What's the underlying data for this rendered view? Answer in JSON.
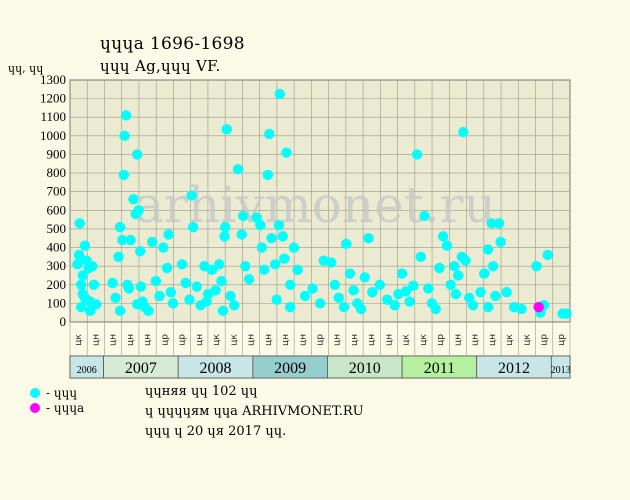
{
  "header": {
    "title_line1": "ɥɥɥa 1696-1698",
    "title_line2": "ɥɥɥ Ag,ɥɥɥ VF.",
    "y_unit": "ɥɥ, ɥɥ"
  },
  "legend": [
    {
      "label": "- ɥɥɥ",
      "color": "#00ffff"
    },
    {
      "label": "- ɥɥɥa",
      "color": "#ff00ff"
    }
  ],
  "notes": [
    "ɥɥняя ɥɥ 102 ɥɥ",
    "ɥ ɥɥɥɥям ɥɥa ARHIVMONET.RU",
    "ɥɥɥ ɥ 20 ɥя 2017 ɥɥ."
  ],
  "watermark": "arhivmonet.ru",
  "colors": {
    "background": "#fafae6",
    "plot_bg": "#ebebd2",
    "grid": "#9a9a8a",
    "series_main": "#00ffff",
    "series_highlight": "#ff00ff",
    "watermark": "#c8c8c8"
  },
  "chart_data": {
    "type": "scatter",
    "ylim": [
      0,
      1300
    ],
    "yticks": [
      0,
      100,
      200,
      300,
      400,
      500,
      600,
      700,
      800,
      900,
      1000,
      1100,
      1200,
      1300
    ],
    "xlim": [
      2006.55,
      2013.25
    ],
    "grid": true,
    "month_labels": [
      "цк",
      "цн",
      "цн",
      "цн",
      "цн",
      "цр",
      "цр",
      "цн",
      "цк",
      "цк",
      "цн",
      "цн",
      "цн",
      "цн",
      "цр",
      "цн",
      "цн",
      "цн",
      "цн",
      "цк",
      "цк",
      "цр",
      "цн",
      "цн",
      "цн",
      "цк",
      "цк",
      "цр",
      "цр"
    ],
    "years": [
      {
        "label": "2006",
        "from": 2006.55,
        "to": 2007.0,
        "color": "#c8e6e6",
        "small": true
      },
      {
        "label": "2007",
        "from": 2007.0,
        "to": 2008.0,
        "color": "#d6ead6",
        "small": false
      },
      {
        "label": "2008",
        "from": 2008.0,
        "to": 2009.0,
        "color": "#c8e6e6",
        "small": false
      },
      {
        "label": "2009",
        "from": 2009.0,
        "to": 2010.0,
        "color": "#96cdcd",
        "small": false
      },
      {
        "label": "2010",
        "from": 2010.0,
        "to": 2011.0,
        "color": "#c8e6c8",
        "small": false
      },
      {
        "label": "2011",
        "from": 2011.0,
        "to": 2012.0,
        "color": "#b4f0a0",
        "small": false
      },
      {
        "label": "2012",
        "from": 2012.0,
        "to": 2013.0,
        "color": "#c8e6e6",
        "small": false
      },
      {
        "label": "2013",
        "from": 2013.0,
        "to": 2013.25,
        "color": "#c8e6e6",
        "small": true
      }
    ],
    "series": [
      {
        "name": "ɥɥɥ",
        "color": "#00ffff",
        "points": [
          [
            2006.65,
            310
          ],
          [
            2006.67,
            360
          ],
          [
            2006.68,
            530
          ],
          [
            2006.7,
            200
          ],
          [
            2006.72,
            250
          ],
          [
            2006.72,
            150
          ],
          [
            2006.75,
            410
          ],
          [
            2006.77,
            330
          ],
          [
            2006.8,
            290
          ],
          [
            2006.82,
            60
          ],
          [
            2006.82,
            110
          ],
          [
            2006.85,
            300
          ],
          [
            2006.87,
            200
          ],
          [
            2006.9,
            95
          ],
          [
            2006.7,
            80
          ],
          [
            2006.75,
            130
          ],
          [
            2007.12,
            210
          ],
          [
            2007.16,
            130
          ],
          [
            2007.2,
            350
          ],
          [
            2007.22,
            510
          ],
          [
            2007.25,
            440
          ],
          [
            2007.27,
            790
          ],
          [
            2007.28,
            1000
          ],
          [
            2007.3,
            1110
          ],
          [
            2007.32,
            200
          ],
          [
            2007.34,
            180
          ],
          [
            2007.36,
            440
          ],
          [
            2007.4,
            660
          ],
          [
            2007.43,
            580
          ],
          [
            2007.45,
            900
          ],
          [
            2007.47,
            600
          ],
          [
            2007.49,
            380
          ],
          [
            2007.5,
            190
          ],
          [
            2007.52,
            110
          ],
          [
            2007.55,
            80
          ],
          [
            2007.6,
            60
          ],
          [
            2007.65,
            430
          ],
          [
            2007.7,
            220
          ],
          [
            2007.75,
            140
          ],
          [
            2007.8,
            400
          ],
          [
            2007.85,
            290
          ],
          [
            2007.87,
            470
          ],
          [
            2007.9,
            160
          ],
          [
            2007.93,
            100
          ],
          [
            2007.22,
            60
          ],
          [
            2007.45,
            95
          ],
          [
            2008.05,
            310
          ],
          [
            2008.1,
            210
          ],
          [
            2008.15,
            120
          ],
          [
            2008.18,
            680
          ],
          [
            2008.2,
            510
          ],
          [
            2008.25,
            190
          ],
          [
            2008.3,
            90
          ],
          [
            2008.35,
            300
          ],
          [
            2008.4,
            150
          ],
          [
            2008.45,
            280
          ],
          [
            2008.5,
            170
          ],
          [
            2008.55,
            310
          ],
          [
            2008.58,
            220
          ],
          [
            2008.62,
            460
          ],
          [
            2008.63,
            510
          ],
          [
            2008.65,
            1035
          ],
          [
            2008.7,
            140
          ],
          [
            2008.75,
            90
          ],
          [
            2008.8,
            820
          ],
          [
            2008.85,
            470
          ],
          [
            2008.87,
            570
          ],
          [
            2008.9,
            300
          ],
          [
            2008.95,
            230
          ],
          [
            2008.38,
            110
          ],
          [
            2008.6,
            60
          ],
          [
            2009.05,
            560
          ],
          [
            2009.1,
            520
          ],
          [
            2009.12,
            400
          ],
          [
            2009.15,
            280
          ],
          [
            2009.2,
            790
          ],
          [
            2009.22,
            1010
          ],
          [
            2009.25,
            450
          ],
          [
            2009.3,
            310
          ],
          [
            2009.35,
            520
          ],
          [
            2009.36,
            1225
          ],
          [
            2009.4,
            460
          ],
          [
            2009.42,
            340
          ],
          [
            2009.45,
            910
          ],
          [
            2009.5,
            200
          ],
          [
            2009.55,
            400
          ],
          [
            2009.6,
            280
          ],
          [
            2009.7,
            140
          ],
          [
            2009.8,
            180
          ],
          [
            2009.9,
            100
          ],
          [
            2009.95,
            330
          ],
          [
            2009.32,
            120
          ],
          [
            2009.5,
            80
          ],
          [
            2010.05,
            320
          ],
          [
            2010.1,
            200
          ],
          [
            2010.15,
            130
          ],
          [
            2010.25,
            420
          ],
          [
            2010.3,
            260
          ],
          [
            2010.35,
            170
          ],
          [
            2010.4,
            100
          ],
          [
            2010.5,
            240
          ],
          [
            2010.55,
            450
          ],
          [
            2010.6,
            160
          ],
          [
            2010.7,
            200
          ],
          [
            2010.8,
            120
          ],
          [
            2010.9,
            90
          ],
          [
            2010.95,
            150
          ],
          [
            2010.22,
            80
          ],
          [
            2010.45,
            70
          ],
          [
            2011.0,
            260
          ],
          [
            2011.05,
            165
          ],
          [
            2011.1,
            110
          ],
          [
            2011.15,
            195
          ],
          [
            2011.2,
            900
          ],
          [
            2011.25,
            350
          ],
          [
            2011.3,
            570
          ],
          [
            2011.35,
            180
          ],
          [
            2011.4,
            100
          ],
          [
            2011.5,
            290
          ],
          [
            2011.55,
            460
          ],
          [
            2011.6,
            410
          ],
          [
            2011.65,
            200
          ],
          [
            2011.7,
            300
          ],
          [
            2011.72,
            150
          ],
          [
            2011.75,
            250
          ],
          [
            2011.8,
            350
          ],
          [
            2011.82,
            1020
          ],
          [
            2011.85,
            330
          ],
          [
            2011.9,
            130
          ],
          [
            2011.95,
            90
          ],
          [
            2011.45,
            70
          ],
          [
            2012.05,
            160
          ],
          [
            2012.1,
            260
          ],
          [
            2012.15,
            390
          ],
          [
            2012.2,
            530
          ],
          [
            2012.22,
            300
          ],
          [
            2012.25,
            140
          ],
          [
            2012.3,
            530
          ],
          [
            2012.32,
            430
          ],
          [
            2012.4,
            160
          ],
          [
            2012.5,
            80
          ],
          [
            2012.6,
            70
          ],
          [
            2012.8,
            300
          ],
          [
            2012.9,
            90
          ],
          [
            2012.95,
            360
          ],
          [
            2012.85,
            50
          ],
          [
            2012.15,
            80
          ],
          [
            2013.15,
            45
          ],
          [
            2013.2,
            45
          ]
        ]
      },
      {
        "name": "ɥɥɥa",
        "color": "#ff00ff",
        "points": [
          [
            2012.83,
            80
          ]
        ]
      }
    ]
  }
}
